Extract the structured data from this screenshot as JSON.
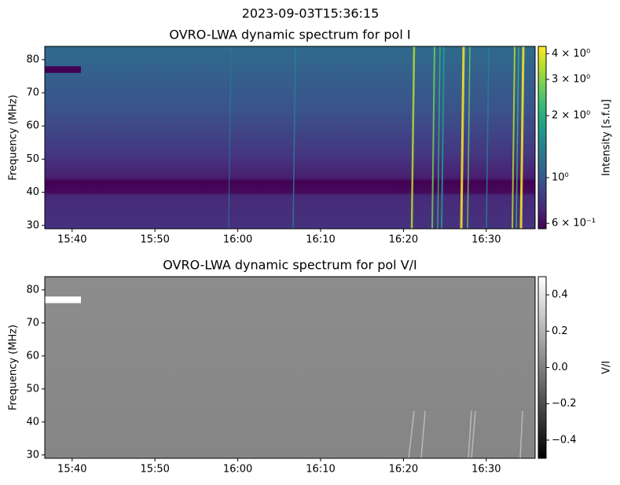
{
  "suptitle": "2023-09-03T15:36:15",
  "chart_data": [
    {
      "type": "heatmap",
      "title": "OVRO-LWA dynamic spectrum for pol I",
      "y_label": "Frequency (MHz)",
      "colorbar_label": "Intensity [s.f.u]",
      "colormap": "viridis",
      "color_scale": "log",
      "xlim": [
        936.7,
        995.9
      ],
      "xticks": [
        {
          "value": 940,
          "label": "15:40"
        },
        {
          "value": 950,
          "label": "15:50"
        },
        {
          "value": 960,
          "label": "16:00"
        },
        {
          "value": 970,
          "label": "16:10"
        },
        {
          "value": 980,
          "label": "16:20"
        },
        {
          "value": 990,
          "label": "16:30"
        }
      ],
      "ylim": [
        29,
        84
      ],
      "yticks": [
        30,
        40,
        50,
        60,
        70,
        80
      ],
      "clim": [
        0.565,
        4.34
      ],
      "cticks": [
        {
          "value": 0.6,
          "label": "6 × 10⁻¹"
        },
        {
          "value": 1,
          "label": "10⁰"
        },
        {
          "value": 2,
          "label": "2 × 10⁰"
        },
        {
          "value": 3,
          "label": "3 × 10⁰"
        },
        {
          "value": 4,
          "label": "4 × 10⁰"
        }
      ]
    },
    {
      "type": "heatmap",
      "title": "OVRO-LWA dynamic spectrum for pol V/I",
      "y_label": "Frequency (MHz)",
      "colorbar_label": "V/I",
      "colormap": "gray",
      "color_scale": "linear",
      "xlim": [
        936.7,
        995.9
      ],
      "xticks": [
        {
          "value": 940,
          "label": "15:40"
        },
        {
          "value": 950,
          "label": "15:50"
        },
        {
          "value": 960,
          "label": "16:00"
        },
        {
          "value": 970,
          "label": "16:10"
        },
        {
          "value": 980,
          "label": "16:20"
        },
        {
          "value": 990,
          "label": "16:30"
        }
      ],
      "ylim": [
        29,
        84
      ],
      "yticks": [
        30,
        40,
        50,
        60,
        70,
        80
      ],
      "clim": [
        -0.5,
        0.5
      ],
      "cticks": [
        {
          "value": -0.4,
          "label": "−0.4"
        },
        {
          "value": -0.2,
          "label": "−0.2"
        },
        {
          "value": 0,
          "label": "0.0"
        },
        0.2,
        0.4
      ]
    }
  ]
}
